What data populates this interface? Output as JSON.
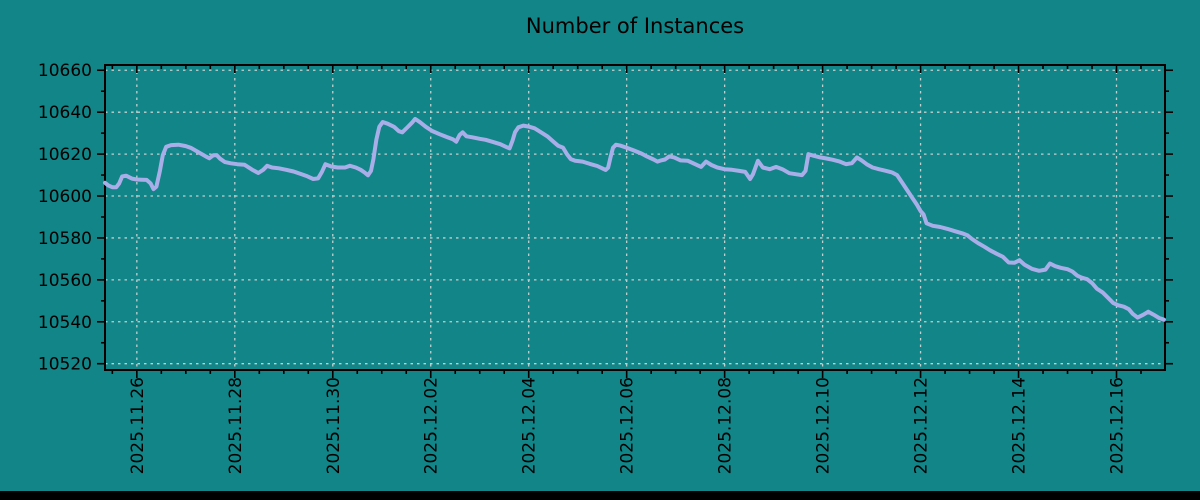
{
  "window": {
    "background_color": "#118587",
    "bottom_bar_color": "#000000"
  },
  "chart_data": {
    "type": "line",
    "title": "Number of Instances",
    "x_axis": {
      "tick_labels": [
        "2025.11.26",
        "2025.11.28",
        "2025.11.30",
        "2025.12.02",
        "2025.12.04",
        "2025.12.06",
        "2025.12.08",
        "2025.12.10",
        "2025.12.12",
        "2025.12.14",
        "2025.12.16"
      ],
      "tick_positions_days": [
        0,
        2,
        4,
        6,
        8,
        10,
        12,
        14,
        16,
        18,
        20
      ],
      "minor_tick_interval_days": 0.5,
      "range_days": [
        -0.65,
        20.99
      ],
      "label_rotation_deg": -90
    },
    "y_axis": {
      "tick_labels": [
        "10520",
        "10540",
        "10560",
        "10580",
        "10600",
        "10620",
        "10640",
        "10660"
      ],
      "tick_values": [
        10520,
        10540,
        10560,
        10580,
        10600,
        10620,
        10640,
        10660
      ],
      "minor_tick_interval": 10,
      "range": [
        10517,
        10662.5
      ]
    },
    "grid": {
      "show": true,
      "color": "#c3cfcf",
      "dash": "2.5 4"
    },
    "styles": {
      "line_color": "#a9aee8",
      "line_width": 4,
      "frame_color": "#000000",
      "text_color": "#000000",
      "tick_font_px": 17,
      "title_font_px": 21
    },
    "series": [
      {
        "name": "instances",
        "points": [
          [
            -0.65,
            10606.3
          ],
          [
            -0.58,
            10605.0
          ],
          [
            -0.5,
            10604.2
          ],
          [
            -0.42,
            10604.2
          ],
          [
            -0.36,
            10606.0
          ],
          [
            -0.3,
            10609.3
          ],
          [
            -0.22,
            10609.7
          ],
          [
            -0.1,
            10608.3
          ],
          [
            0.0,
            10607.9
          ],
          [
            0.1,
            10607.8
          ],
          [
            0.2,
            10607.7
          ],
          [
            0.28,
            10606.0
          ],
          [
            0.34,
            10603.3
          ],
          [
            0.4,
            10604.5
          ],
          [
            0.47,
            10612.0
          ],
          [
            0.53,
            10619.5
          ],
          [
            0.6,
            10623.5
          ],
          [
            0.7,
            10624.3
          ],
          [
            0.85,
            10624.5
          ],
          [
            1.0,
            10623.8
          ],
          [
            1.1,
            10623.0
          ],
          [
            1.25,
            10621.0
          ],
          [
            1.4,
            10619.0
          ],
          [
            1.48,
            10618.0
          ],
          [
            1.56,
            10619.4
          ],
          [
            1.63,
            10619.5
          ],
          [
            1.7,
            10617.8
          ],
          [
            1.8,
            10616.2
          ],
          [
            1.92,
            10615.6
          ],
          [
            2.05,
            10615.2
          ],
          [
            2.2,
            10614.9
          ],
          [
            2.35,
            10612.6
          ],
          [
            2.48,
            10611.0
          ],
          [
            2.58,
            10612.5
          ],
          [
            2.66,
            10614.4
          ],
          [
            2.76,
            10613.6
          ],
          [
            2.9,
            10613.2
          ],
          [
            3.05,
            10612.5
          ],
          [
            3.2,
            10611.7
          ],
          [
            3.35,
            10610.5
          ],
          [
            3.48,
            10609.4
          ],
          [
            3.6,
            10608.1
          ],
          [
            3.7,
            10608.4
          ],
          [
            3.78,
            10611.6
          ],
          [
            3.85,
            10615.2
          ],
          [
            3.97,
            10614.1
          ],
          [
            4.1,
            10613.6
          ],
          [
            4.25,
            10613.6
          ],
          [
            4.35,
            10614.4
          ],
          [
            4.47,
            10613.6
          ],
          [
            4.57,
            10612.5
          ],
          [
            4.65,
            10611.2
          ],
          [
            4.72,
            10609.9
          ],
          [
            4.78,
            10612.0
          ],
          [
            4.83,
            10617.6
          ],
          [
            4.89,
            10627.0
          ],
          [
            4.95,
            10633.0
          ],
          [
            5.02,
            10635.3
          ],
          [
            5.12,
            10634.5
          ],
          [
            5.25,
            10633.0
          ],
          [
            5.35,
            10630.9
          ],
          [
            5.42,
            10630.4
          ],
          [
            5.52,
            10632.7
          ],
          [
            5.62,
            10635.0
          ],
          [
            5.68,
            10636.8
          ],
          [
            5.78,
            10635.2
          ],
          [
            5.9,
            10633.0
          ],
          [
            6.03,
            10631.0
          ],
          [
            6.18,
            10629.5
          ],
          [
            6.32,
            10628.2
          ],
          [
            6.45,
            10627.1
          ],
          [
            6.52,
            10625.9
          ],
          [
            6.59,
            10629.1
          ],
          [
            6.65,
            10630.4
          ],
          [
            6.73,
            10628.5
          ],
          [
            6.85,
            10628.0
          ],
          [
            7.0,
            10627.3
          ],
          [
            7.12,
            10626.8
          ],
          [
            7.27,
            10625.8
          ],
          [
            7.42,
            10624.7
          ],
          [
            7.55,
            10623.3
          ],
          [
            7.61,
            10622.7
          ],
          [
            7.67,
            10626.4
          ],
          [
            7.72,
            10630.4
          ],
          [
            7.79,
            10632.8
          ],
          [
            7.89,
            10633.6
          ],
          [
            8.0,
            10633.1
          ],
          [
            8.12,
            10632.3
          ],
          [
            8.25,
            10630.4
          ],
          [
            8.38,
            10628.5
          ],
          [
            8.5,
            10626.0
          ],
          [
            8.6,
            10624.0
          ],
          [
            8.7,
            10623.1
          ],
          [
            8.78,
            10620.0
          ],
          [
            8.86,
            10617.6
          ],
          [
            8.95,
            10616.8
          ],
          [
            9.1,
            10616.4
          ],
          [
            9.25,
            10615.3
          ],
          [
            9.4,
            10614.3
          ],
          [
            9.5,
            10613.2
          ],
          [
            9.57,
            10612.4
          ],
          [
            9.62,
            10613.5
          ],
          [
            9.67,
            10618.4
          ],
          [
            9.72,
            10623.0
          ],
          [
            9.78,
            10624.5
          ],
          [
            9.88,
            10624.0
          ],
          [
            10.0,
            10623.0
          ],
          [
            10.15,
            10621.7
          ],
          [
            10.3,
            10620.3
          ],
          [
            10.42,
            10618.8
          ],
          [
            10.55,
            10617.4
          ],
          [
            10.63,
            10616.4
          ],
          [
            10.7,
            10617.0
          ],
          [
            10.78,
            10617.4
          ],
          [
            10.87,
            10618.9
          ],
          [
            10.97,
            10618.4
          ],
          [
            11.1,
            10617.0
          ],
          [
            11.25,
            10616.8
          ],
          [
            11.4,
            10615.2
          ],
          [
            11.52,
            10613.9
          ],
          [
            11.62,
            10616.4
          ],
          [
            11.73,
            10614.8
          ],
          [
            11.85,
            10613.6
          ],
          [
            12.0,
            10612.8
          ],
          [
            12.15,
            10612.5
          ],
          [
            12.3,
            10612.0
          ],
          [
            12.42,
            10611.5
          ],
          [
            12.52,
            10608.1
          ],
          [
            12.58,
            10610.4
          ],
          [
            12.68,
            10616.8
          ],
          [
            12.78,
            10613.6
          ],
          [
            12.92,
            10612.8
          ],
          [
            13.05,
            10613.9
          ],
          [
            13.18,
            10612.8
          ],
          [
            13.32,
            10610.9
          ],
          [
            13.45,
            10610.4
          ],
          [
            13.58,
            10610.0
          ],
          [
            13.65,
            10612.0
          ],
          [
            13.71,
            10620.0
          ],
          [
            13.82,
            10619.2
          ],
          [
            13.95,
            10618.4
          ],
          [
            14.08,
            10617.9
          ],
          [
            14.2,
            10617.3
          ],
          [
            14.35,
            10616.4
          ],
          [
            14.48,
            10615.2
          ],
          [
            14.6,
            10615.7
          ],
          [
            14.7,
            10618.4
          ],
          [
            14.79,
            10617.1
          ],
          [
            14.9,
            10615.2
          ],
          [
            15.02,
            10613.6
          ],
          [
            15.15,
            10612.8
          ],
          [
            15.3,
            10612.0
          ],
          [
            15.42,
            10611.2
          ],
          [
            15.52,
            10610.0
          ],
          [
            15.62,
            10606.5
          ],
          [
            15.72,
            10603.0
          ],
          [
            15.82,
            10599.5
          ],
          [
            15.92,
            10596.0
          ],
          [
            16.0,
            10592.8
          ],
          [
            16.06,
            10591.3
          ],
          [
            16.12,
            10587.0
          ],
          [
            16.25,
            10585.8
          ],
          [
            16.4,
            10585.2
          ],
          [
            16.55,
            10584.3
          ],
          [
            16.7,
            10583.2
          ],
          [
            16.85,
            10582.2
          ],
          [
            16.96,
            10581.2
          ],
          [
            17.05,
            10579.5
          ],
          [
            17.17,
            10577.6
          ],
          [
            17.3,
            10575.8
          ],
          [
            17.42,
            10574.1
          ],
          [
            17.55,
            10572.5
          ],
          [
            17.68,
            10571.0
          ],
          [
            17.8,
            10568.3
          ],
          [
            17.92,
            10568.2
          ],
          [
            18.02,
            10569.4
          ],
          [
            18.12,
            10567.3
          ],
          [
            18.27,
            10565.3
          ],
          [
            18.42,
            10564.3
          ],
          [
            18.55,
            10564.9
          ],
          [
            18.64,
            10567.8
          ],
          [
            18.75,
            10566.5
          ],
          [
            18.87,
            10565.7
          ],
          [
            19.0,
            10565.1
          ],
          [
            19.1,
            10564.0
          ],
          [
            19.2,
            10562.0
          ],
          [
            19.3,
            10561.0
          ],
          [
            19.4,
            10560.3
          ],
          [
            19.5,
            10558.5
          ],
          [
            19.6,
            10555.8
          ],
          [
            19.72,
            10553.9
          ],
          [
            19.83,
            10551.4
          ],
          [
            19.93,
            10549.0
          ],
          [
            20.03,
            10547.9
          ],
          [
            20.15,
            10547.2
          ],
          [
            20.25,
            10546.0
          ],
          [
            20.33,
            10543.8
          ],
          [
            20.43,
            10542.0
          ],
          [
            20.55,
            10543.4
          ],
          [
            20.65,
            10544.8
          ],
          [
            20.76,
            10543.4
          ],
          [
            20.87,
            10541.8
          ],
          [
            20.97,
            10541.0
          ]
        ]
      }
    ]
  }
}
